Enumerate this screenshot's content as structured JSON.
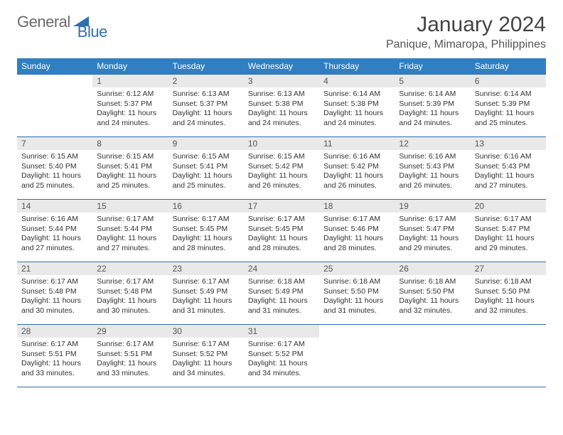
{
  "colors": {
    "header_bg": "#2f7fc2",
    "header_text": "#ffffff",
    "rule": "#2f6fb0",
    "daynum_bg": "#e9e9e9",
    "daynum_text": "#555555",
    "body_text": "#333333",
    "logo_gray": "#6a6a6a",
    "logo_blue": "#2f6fb0",
    "page_bg": "#ffffff"
  },
  "typography": {
    "month_title_fontsize": 30,
    "location_fontsize": 16,
    "weekday_fontsize": 12,
    "daynum_fontsize": 12,
    "cell_fontsize": 10.5,
    "logo_fontsize": 22
  },
  "logo": {
    "word1": "General",
    "word2": "Blue"
  },
  "title": "January 2024",
  "location": "Panique, Mimaropa, Philippines",
  "weekdays": [
    "Sunday",
    "Monday",
    "Tuesday",
    "Wednesday",
    "Thursday",
    "Friday",
    "Saturday"
  ],
  "weeks": [
    [
      null,
      {
        "n": "1",
        "sr": "6:12 AM",
        "ss": "5:37 PM",
        "dl": "11 hours and 24 minutes."
      },
      {
        "n": "2",
        "sr": "6:13 AM",
        "ss": "5:37 PM",
        "dl": "11 hours and 24 minutes."
      },
      {
        "n": "3",
        "sr": "6:13 AM",
        "ss": "5:38 PM",
        "dl": "11 hours and 24 minutes."
      },
      {
        "n": "4",
        "sr": "6:14 AM",
        "ss": "5:38 PM",
        "dl": "11 hours and 24 minutes."
      },
      {
        "n": "5",
        "sr": "6:14 AM",
        "ss": "5:39 PM",
        "dl": "11 hours and 24 minutes."
      },
      {
        "n": "6",
        "sr": "6:14 AM",
        "ss": "5:39 PM",
        "dl": "11 hours and 25 minutes."
      }
    ],
    [
      {
        "n": "7",
        "sr": "6:15 AM",
        "ss": "5:40 PM",
        "dl": "11 hours and 25 minutes."
      },
      {
        "n": "8",
        "sr": "6:15 AM",
        "ss": "5:41 PM",
        "dl": "11 hours and 25 minutes."
      },
      {
        "n": "9",
        "sr": "6:15 AM",
        "ss": "5:41 PM",
        "dl": "11 hours and 25 minutes."
      },
      {
        "n": "10",
        "sr": "6:15 AM",
        "ss": "5:42 PM",
        "dl": "11 hours and 26 minutes."
      },
      {
        "n": "11",
        "sr": "6:16 AM",
        "ss": "5:42 PM",
        "dl": "11 hours and 26 minutes."
      },
      {
        "n": "12",
        "sr": "6:16 AM",
        "ss": "5:43 PM",
        "dl": "11 hours and 26 minutes."
      },
      {
        "n": "13",
        "sr": "6:16 AM",
        "ss": "5:43 PM",
        "dl": "11 hours and 27 minutes."
      }
    ],
    [
      {
        "n": "14",
        "sr": "6:16 AM",
        "ss": "5:44 PM",
        "dl": "11 hours and 27 minutes."
      },
      {
        "n": "15",
        "sr": "6:17 AM",
        "ss": "5:44 PM",
        "dl": "11 hours and 27 minutes."
      },
      {
        "n": "16",
        "sr": "6:17 AM",
        "ss": "5:45 PM",
        "dl": "11 hours and 28 minutes."
      },
      {
        "n": "17",
        "sr": "6:17 AM",
        "ss": "5:45 PM",
        "dl": "11 hours and 28 minutes."
      },
      {
        "n": "18",
        "sr": "6:17 AM",
        "ss": "5:46 PM",
        "dl": "11 hours and 28 minutes."
      },
      {
        "n": "19",
        "sr": "6:17 AM",
        "ss": "5:47 PM",
        "dl": "11 hours and 29 minutes."
      },
      {
        "n": "20",
        "sr": "6:17 AM",
        "ss": "5:47 PM",
        "dl": "11 hours and 29 minutes."
      }
    ],
    [
      {
        "n": "21",
        "sr": "6:17 AM",
        "ss": "5:48 PM",
        "dl": "11 hours and 30 minutes."
      },
      {
        "n": "22",
        "sr": "6:17 AM",
        "ss": "5:48 PM",
        "dl": "11 hours and 30 minutes."
      },
      {
        "n": "23",
        "sr": "6:17 AM",
        "ss": "5:49 PM",
        "dl": "11 hours and 31 minutes."
      },
      {
        "n": "24",
        "sr": "6:18 AM",
        "ss": "5:49 PM",
        "dl": "11 hours and 31 minutes."
      },
      {
        "n": "25",
        "sr": "6:18 AM",
        "ss": "5:50 PM",
        "dl": "11 hours and 31 minutes."
      },
      {
        "n": "26",
        "sr": "6:18 AM",
        "ss": "5:50 PM",
        "dl": "11 hours and 32 minutes."
      },
      {
        "n": "27",
        "sr": "6:18 AM",
        "ss": "5:50 PM",
        "dl": "11 hours and 32 minutes."
      }
    ],
    [
      {
        "n": "28",
        "sr": "6:17 AM",
        "ss": "5:51 PM",
        "dl": "11 hours and 33 minutes."
      },
      {
        "n": "29",
        "sr": "6:17 AM",
        "ss": "5:51 PM",
        "dl": "11 hours and 33 minutes."
      },
      {
        "n": "30",
        "sr": "6:17 AM",
        "ss": "5:52 PM",
        "dl": "11 hours and 34 minutes."
      },
      {
        "n": "31",
        "sr": "6:17 AM",
        "ss": "5:52 PM",
        "dl": "11 hours and 34 minutes."
      },
      null,
      null,
      null
    ]
  ],
  "labels": {
    "sunrise": "Sunrise:",
    "sunset": "Sunset:",
    "daylight": "Daylight:"
  }
}
